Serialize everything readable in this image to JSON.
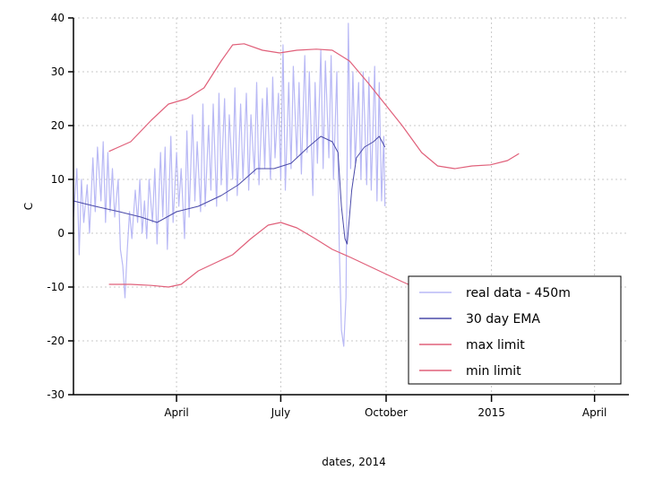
{
  "chart_data": {
    "type": "line",
    "xlabel": "dates, 2014",
    "ylabel": "C",
    "ylim": [
      -30,
      40
    ],
    "xlim": [
      "2014-01-01",
      "2015-05-01"
    ],
    "grid": true,
    "legend_position": "bottom-right",
    "y_ticks": [
      -30,
      -20,
      -10,
      0,
      10,
      20,
      30,
      40
    ],
    "x_ticks": [
      {
        "date": "2014-04-01",
        "label": "April"
      },
      {
        "date": "2014-07-01",
        "label": "July"
      },
      {
        "date": "2014-10-01",
        "label": "October"
      },
      {
        "date": "2015-01-01",
        "label": "2015"
      },
      {
        "date": "2015-04-01",
        "label": "April"
      }
    ],
    "colors": {
      "real": "#b9b9f5",
      "ema": "#4a4aa8",
      "limit": "#e0607a",
      "grid": "#c8c8c8"
    },
    "series": [
      {
        "name": "real data - 450m",
        "values": [
          [
            "2014-01-01",
            3
          ],
          [
            "2014-01-04",
            12
          ],
          [
            "2014-01-06",
            -4
          ],
          [
            "2014-01-08",
            10
          ],
          [
            "2014-01-10",
            2
          ],
          [
            "2014-01-13",
            9
          ],
          [
            "2014-01-15",
            0
          ],
          [
            "2014-01-18",
            14
          ],
          [
            "2014-01-20",
            4
          ],
          [
            "2014-01-22",
            16
          ],
          [
            "2014-01-25",
            6
          ],
          [
            "2014-01-27",
            17
          ],
          [
            "2014-01-29",
            2
          ],
          [
            "2014-01-31",
            15
          ],
          [
            "2014-02-02",
            4
          ],
          [
            "2014-02-04",
            12
          ],
          [
            "2014-02-06",
            3
          ],
          [
            "2014-02-09",
            10
          ],
          [
            "2014-02-11",
            -3
          ],
          [
            "2014-02-13",
            -6
          ],
          [
            "2014-02-15",
            -12
          ],
          [
            "2014-02-17",
            -3
          ],
          [
            "2014-02-19",
            4
          ],
          [
            "2014-02-21",
            -1
          ],
          [
            "2014-02-24",
            8
          ],
          [
            "2014-02-26",
            2
          ],
          [
            "2014-02-28",
            10
          ],
          [
            "2014-03-02",
            0
          ],
          [
            "2014-03-04",
            6
          ],
          [
            "2014-03-06",
            -1
          ],
          [
            "2014-03-08",
            10
          ],
          [
            "2014-03-11",
            2
          ],
          [
            "2014-03-13",
            12
          ],
          [
            "2014-03-15",
            -2
          ],
          [
            "2014-03-18",
            15
          ],
          [
            "2014-03-20",
            3
          ],
          [
            "2014-03-22",
            16
          ],
          [
            "2014-03-24",
            -3
          ],
          [
            "2014-03-27",
            18
          ],
          [
            "2014-03-29",
            2
          ],
          [
            "2014-04-01",
            15
          ],
          [
            "2014-04-03",
            5
          ],
          [
            "2014-04-05",
            12
          ],
          [
            "2014-04-08",
            -1
          ],
          [
            "2014-04-10",
            19
          ],
          [
            "2014-04-12",
            3
          ],
          [
            "2014-04-15",
            22
          ],
          [
            "2014-04-17",
            6
          ],
          [
            "2014-04-19",
            17
          ],
          [
            "2014-04-22",
            4
          ],
          [
            "2014-04-24",
            24
          ],
          [
            "2014-04-26",
            5
          ],
          [
            "2014-04-29",
            20
          ],
          [
            "2014-05-01",
            8
          ],
          [
            "2014-05-03",
            24
          ],
          [
            "2014-05-06",
            5
          ],
          [
            "2014-05-08",
            26
          ],
          [
            "2014-05-10",
            9
          ],
          [
            "2014-05-13",
            25
          ],
          [
            "2014-05-15",
            6
          ],
          [
            "2014-05-17",
            22
          ],
          [
            "2014-05-20",
            10
          ],
          [
            "2014-05-22",
            27
          ],
          [
            "2014-05-24",
            7
          ],
          [
            "2014-05-27",
            24
          ],
          [
            "2014-05-29",
            10
          ],
          [
            "2014-06-01",
            26
          ],
          [
            "2014-06-03",
            8
          ],
          [
            "2014-06-05",
            22
          ],
          [
            "2014-06-08",
            11
          ],
          [
            "2014-06-10",
            28
          ],
          [
            "2014-06-12",
            9
          ],
          [
            "2014-06-15",
            25
          ],
          [
            "2014-06-17",
            12
          ],
          [
            "2014-06-19",
            27
          ],
          [
            "2014-06-22",
            10
          ],
          [
            "2014-06-24",
            29
          ],
          [
            "2014-06-26",
            14
          ],
          [
            "2014-06-29",
            26
          ],
          [
            "2014-07-01",
            10
          ],
          [
            "2014-07-03",
            35
          ],
          [
            "2014-07-05",
            8
          ],
          [
            "2014-07-08",
            28
          ],
          [
            "2014-07-10",
            12
          ],
          [
            "2014-07-12",
            31
          ],
          [
            "2014-07-15",
            14
          ],
          [
            "2014-07-17",
            28
          ],
          [
            "2014-07-19",
            11
          ],
          [
            "2014-07-22",
            33
          ],
          [
            "2014-07-24",
            15
          ],
          [
            "2014-07-26",
            30
          ],
          [
            "2014-07-29",
            7
          ],
          [
            "2014-07-31",
            28
          ],
          [
            "2014-08-02",
            13
          ],
          [
            "2014-08-05",
            34
          ],
          [
            "2014-08-07",
            12
          ],
          [
            "2014-08-09",
            32
          ],
          [
            "2014-08-12",
            14
          ],
          [
            "2014-08-14",
            33
          ],
          [
            "2014-08-16",
            10
          ],
          [
            "2014-08-19",
            30
          ],
          [
            "2014-08-21",
            -2
          ],
          [
            "2014-08-23",
            -18
          ],
          [
            "2014-08-25",
            -21
          ],
          [
            "2014-08-27",
            -12
          ],
          [
            "2014-08-29",
            39
          ],
          [
            "2014-08-31",
            12
          ],
          [
            "2014-09-02",
            30
          ],
          [
            "2014-09-04",
            13
          ],
          [
            "2014-09-07",
            28
          ],
          [
            "2014-09-09",
            10
          ],
          [
            "2014-09-11",
            30
          ],
          [
            "2014-09-14",
            9
          ],
          [
            "2014-09-16",
            29
          ],
          [
            "2014-09-18",
            8
          ],
          [
            "2014-09-21",
            31
          ],
          [
            "2014-09-23",
            6
          ],
          [
            "2014-09-25",
            28
          ],
          [
            "2014-09-27",
            6
          ],
          [
            "2014-09-29",
            18
          ],
          [
            "2014-09-30",
            5
          ]
        ]
      },
      {
        "name": "30 day EMA",
        "values": [
          [
            "2014-01-01",
            6
          ],
          [
            "2014-01-20",
            5
          ],
          [
            "2014-02-10",
            4
          ],
          [
            "2014-03-01",
            3
          ],
          [
            "2014-03-15",
            2
          ],
          [
            "2014-04-01",
            4
          ],
          [
            "2014-04-20",
            5
          ],
          [
            "2014-05-10",
            7
          ],
          [
            "2014-05-25",
            9
          ],
          [
            "2014-06-10",
            12
          ],
          [
            "2014-06-25",
            12
          ],
          [
            "2014-07-10",
            13
          ],
          [
            "2014-07-25",
            16
          ],
          [
            "2014-08-05",
            18
          ],
          [
            "2014-08-15",
            17
          ],
          [
            "2014-08-20",
            15
          ],
          [
            "2014-08-23",
            5
          ],
          [
            "2014-08-26",
            -1
          ],
          [
            "2014-08-28",
            -2
          ],
          [
            "2014-09-01",
            8
          ],
          [
            "2014-09-05",
            14
          ],
          [
            "2014-09-12",
            16
          ],
          [
            "2014-09-20",
            17
          ],
          [
            "2014-09-25",
            18
          ],
          [
            "2014-09-30",
            16
          ]
        ]
      },
      {
        "name": "max limit",
        "values": [
          [
            "2014-02-01",
            15.2
          ],
          [
            "2014-02-20",
            17
          ],
          [
            "2014-03-10",
            21
          ],
          [
            "2014-03-25",
            24
          ],
          [
            "2014-04-10",
            25
          ],
          [
            "2014-04-25",
            27
          ],
          [
            "2014-05-10",
            32
          ],
          [
            "2014-05-20",
            35
          ],
          [
            "2014-05-30",
            35.2
          ],
          [
            "2014-06-15",
            34
          ],
          [
            "2014-06-30",
            33.5
          ],
          [
            "2014-07-15",
            34
          ],
          [
            "2014-08-01",
            34.2
          ],
          [
            "2014-08-15",
            34
          ],
          [
            "2014-08-30",
            32
          ],
          [
            "2014-09-15",
            28
          ],
          [
            "2014-09-30",
            24
          ],
          [
            "2014-10-15",
            20
          ],
          [
            "2014-11-01",
            15
          ],
          [
            "2014-11-15",
            12.5
          ],
          [
            "2014-11-30",
            12
          ],
          [
            "2014-12-15",
            12.5
          ],
          [
            "2014-12-31",
            12.7
          ],
          [
            "2015-01-15",
            13.5
          ],
          [
            "2015-01-25",
            14.8
          ]
        ]
      },
      {
        "name": "min limit",
        "values": [
          [
            "2014-02-01",
            -9.5
          ],
          [
            "2014-02-20",
            -9.5
          ],
          [
            "2014-03-10",
            -9.7
          ],
          [
            "2014-03-25",
            -10
          ],
          [
            "2014-04-05",
            -9.5
          ],
          [
            "2014-04-20",
            -7
          ],
          [
            "2014-05-05",
            -5.5
          ],
          [
            "2014-05-20",
            -4
          ],
          [
            "2014-06-05",
            -1
          ],
          [
            "2014-06-20",
            1.5
          ],
          [
            "2014-07-01",
            2
          ],
          [
            "2014-07-15",
            1
          ],
          [
            "2014-07-31",
            -1
          ],
          [
            "2014-08-15",
            -3
          ],
          [
            "2014-08-31",
            -4.5
          ],
          [
            "2014-09-15",
            -6
          ],
          [
            "2014-09-30",
            -7.5
          ],
          [
            "2014-10-15",
            -9
          ],
          [
            "2014-10-31",
            -10.5
          ]
        ]
      }
    ]
  }
}
